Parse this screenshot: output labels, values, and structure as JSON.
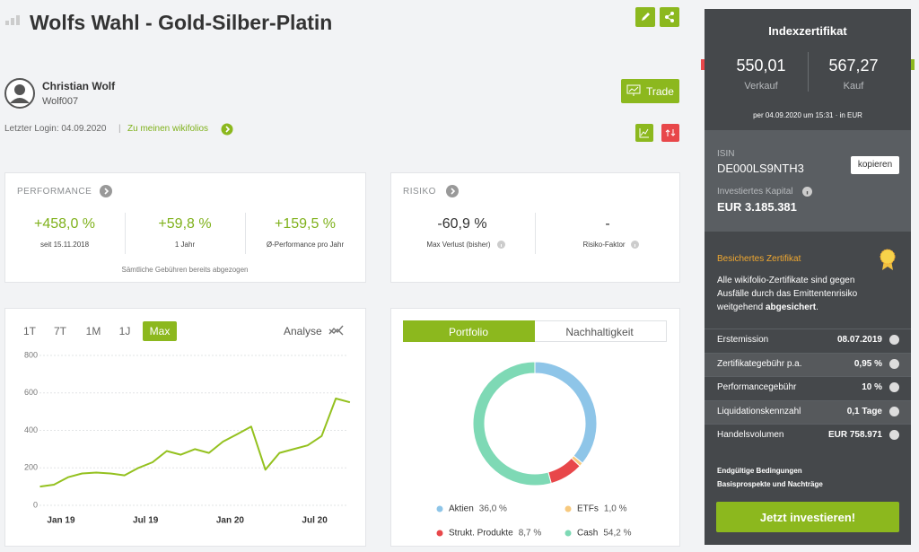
{
  "header": {
    "title": "Wolfs Wahl - Gold-Silber-Platin"
  },
  "trader": {
    "name": "Christian Wolf",
    "nickname": "Wolf007",
    "last_login": "Letzter Login: 04.09.2020",
    "separator": "|",
    "link": "Zu meinen wikifolios"
  },
  "trade_button": "Trade",
  "performance": {
    "title": "PERFORMANCE",
    "items": [
      {
        "value": "+458,0 %",
        "label": "seit 15.11.2018"
      },
      {
        "value": "+59,8 %",
        "label": "1 Jahr"
      },
      {
        "value": "+159,5 %",
        "label": "Ø-Performance pro Jahr"
      }
    ],
    "note": "Sämtliche Gebühren bereits abgezogen"
  },
  "risk": {
    "title": "RISIKO",
    "items": [
      {
        "value": "-60,9 %",
        "label": "Max Verlust (bisher)"
      },
      {
        "value": "-",
        "label": "Risiko-Faktor"
      }
    ]
  },
  "chart_controls": {
    "ranges": [
      "1T",
      "7T",
      "1M",
      "1J",
      "Max"
    ],
    "analyse": "Analyse"
  },
  "portfolio_tabs": [
    "Portfolio",
    "Nachhaltigkeit"
  ],
  "sidebar": {
    "title": "Indexzertifikat",
    "bid": "550,01",
    "bid_label": "Verkauf",
    "ask": "567,27",
    "ask_label": "Kauf",
    "timestamp": "per 04.09.2020 um 15:31 · in EUR",
    "isin_label": "ISIN",
    "isin": "DE000LS9NTH3",
    "copy_button": "kopieren",
    "capital_label": "Investiertes Kapital",
    "capital": "EUR 3.185.381",
    "secured_title": "Besichertes Zertifikat",
    "secured_text": "Alle wikifolio-Zertifikate sind gegen Ausfälle durch das Emittentenrisiko weitgehend",
    "secured_bold": "abgesichert",
    "secured_end": ".",
    "facts": [
      [
        "Erstemission",
        "08.07.2019"
      ],
      [
        "Zertifikategebühr p.a.",
        "0,95 %"
      ],
      [
        "Performancegebühr",
        "10 %"
      ],
      [
        "Liquidationskennzahl",
        "0,1 Tage"
      ],
      [
        "Handelsvolumen",
        "EUR 758.971"
      ]
    ],
    "links": [
      "Endgültige Bedingungen",
      "Basisprospekte und Nachträge"
    ],
    "invest_button": "Jetzt investieren!"
  },
  "chart_data": [
    {
      "type": "line",
      "color": "#94c11f",
      "x": [
        "Nov 18",
        "Dec 18",
        "Jan 19",
        "Feb 19",
        "Mar 19",
        "Apr 19",
        "May 19",
        "Jun 19",
        "Jul 19",
        "Aug 19",
        "Sep 19",
        "Oct 19",
        "Nov 19",
        "Dec 19",
        "Jan 20",
        "Feb 20",
        "Mar 20",
        "Apr 20",
        "May 20",
        "Jun 20",
        "Jul 20",
        "Aug 20",
        "Sep 20"
      ],
      "values": [
        100,
        110,
        150,
        170,
        175,
        170,
        160,
        200,
        230,
        290,
        270,
        300,
        280,
        340,
        380,
        420,
        190,
        280,
        300,
        320,
        370,
        570,
        550
      ],
      "xticks": [
        "Jan 19",
        "Jul 19",
        "Jan 20",
        "Jul 20"
      ],
      "ylim": [
        0,
        800
      ],
      "yticks": [
        0,
        200,
        400,
        600,
        800
      ],
      "grid": true
    },
    {
      "type": "pie",
      "categories": [
        "Aktien",
        "ETFs",
        "Strukt. Produkte",
        "Cash"
      ],
      "values": [
        36.0,
        1.0,
        8.7,
        54.2
      ],
      "value_labels": [
        "36,0 %",
        "1,0 %",
        "8,7 %",
        "54,2 %"
      ],
      "colors": [
        "#8ec5e8",
        "#f7c97e",
        "#e8474a",
        "#7ed9b5"
      ]
    }
  ]
}
